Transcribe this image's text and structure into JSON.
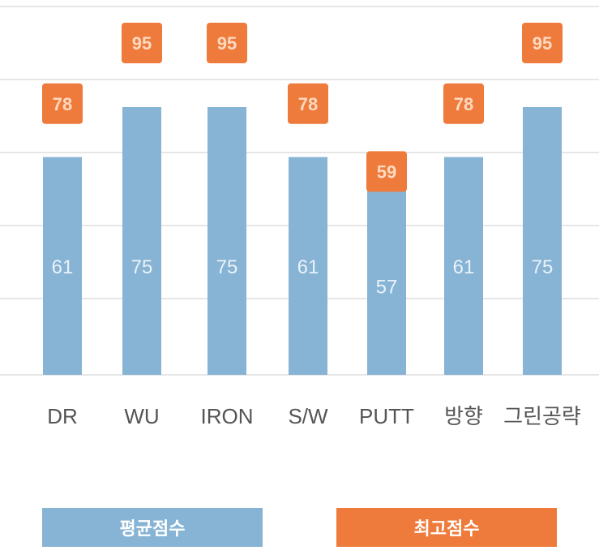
{
  "chart_data": {
    "type": "bar",
    "categories": [
      "DR",
      "WU",
      "IRON",
      "S/W",
      "PUTT",
      "방향",
      "그린공략"
    ],
    "series": [
      {
        "name": "평균점수",
        "values": [
          61,
          75,
          75,
          61,
          57,
          61,
          75
        ],
        "color": "#87b3d4"
      },
      {
        "name": "최고점수",
        "values": [
          78,
          95,
          95,
          78,
          59,
          78,
          95
        ],
        "color": "#ee7b3b"
      }
    ],
    "ylim": [
      0,
      100
    ],
    "grid": true,
    "legend_placement": "bottom"
  }
}
